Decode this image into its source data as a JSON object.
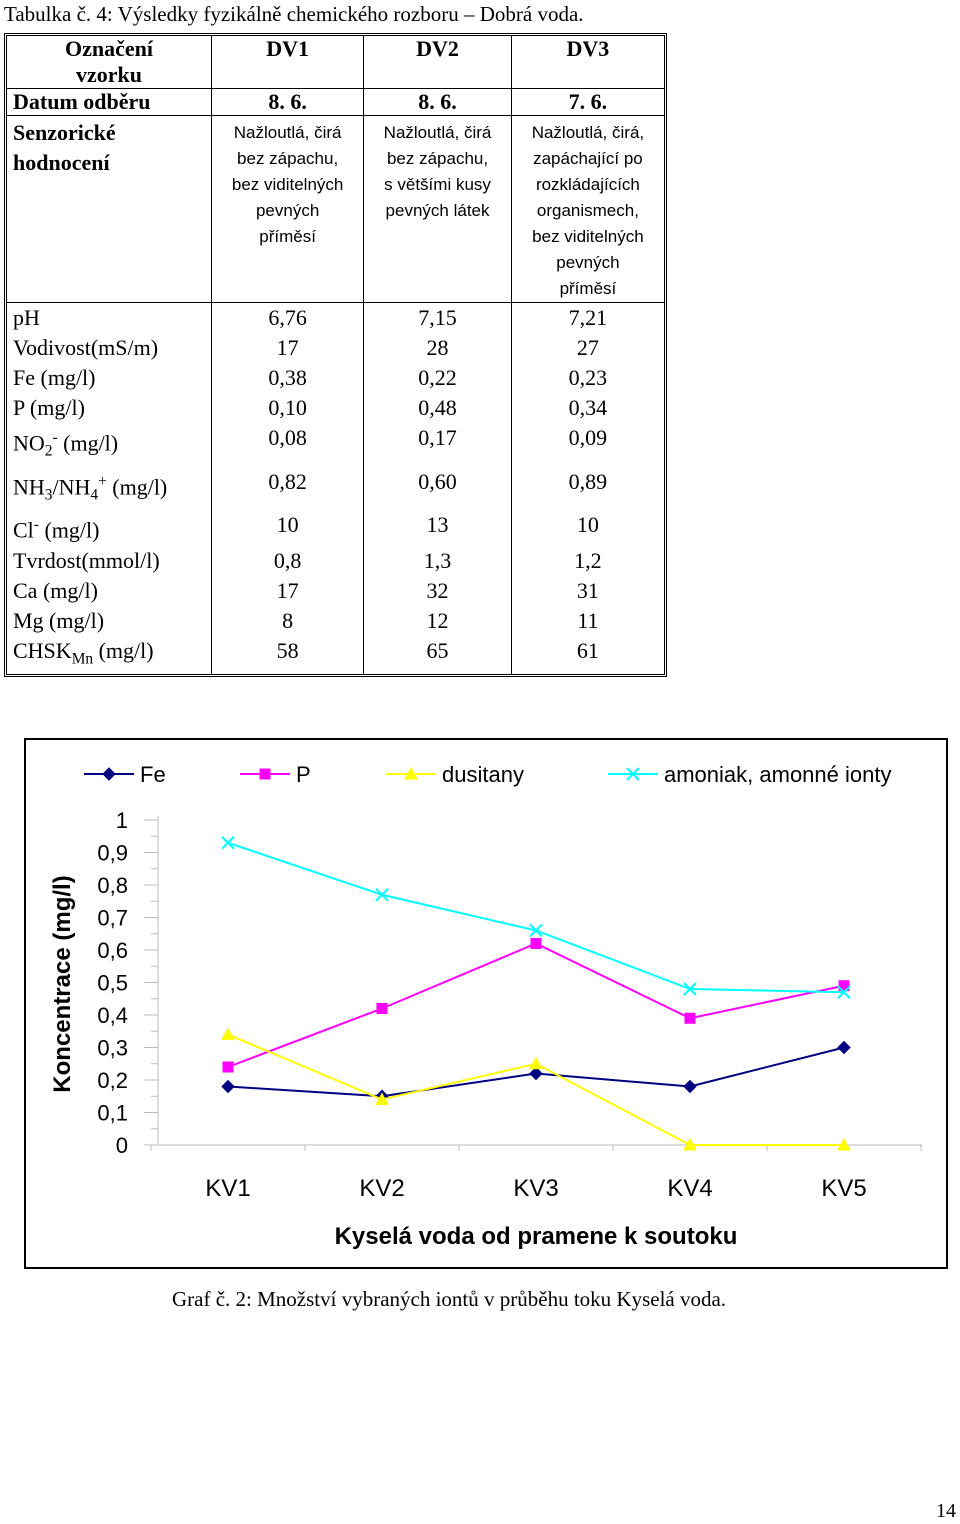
{
  "table_caption": "Tabulka č. 4: Výsledky fyzikálně chemického rozboru – Dobrá voda.",
  "table": {
    "header_label_line1": "Označení",
    "header_label_line2": "vzorku",
    "columns": [
      "DV1",
      "DV2",
      "DV3"
    ],
    "date_label": "Datum odběru",
    "dates": [
      "8. 6.",
      "8. 6.",
      "7. 6."
    ],
    "sensory_label_line1": "Senzorické",
    "sensory_label_line2": "hodnocení",
    "sensory": [
      [
        "Nažloutlá, čirá",
        "bez zápachu,",
        "bez viditelných",
        "pevných",
        "příměsí"
      ],
      [
        "Nažloutlá, čirá",
        "bez zápachu,",
        "s většími kusy",
        "pevných látek"
      ],
      [
        "Nažloutlá, čirá,",
        "zapáchající po",
        "rozkládajících",
        "organismech,",
        "bez viditelných",
        "pevných",
        "příměsí"
      ]
    ],
    "rows": [
      {
        "label": "pH",
        "values": [
          "6,76",
          "7,15",
          "7,21"
        ]
      },
      {
        "label": "Vodivost(mS/m)",
        "values": [
          "17",
          "28",
          "27"
        ]
      },
      {
        "label": "Fe (mg/l)",
        "values": [
          "0,38",
          "0,22",
          "0,23"
        ]
      },
      {
        "label": "P (mg/l)",
        "values": [
          "0,10",
          "0,48",
          "0,34"
        ]
      },
      {
        "label_parts": {
          "a": "NO",
          "sub": "2",
          "sup": "-",
          "b": " (mg/l)"
        },
        "values": [
          "0,08",
          "0,17",
          "0,09"
        ]
      },
      {
        "label_parts": {
          "a": "NH",
          "sub": "3",
          "mid": "/NH",
          "sub2": "4",
          "sup": "+",
          "b": " (mg/l)"
        },
        "values": [
          "0,82",
          "0,60",
          "0,89"
        ]
      },
      {
        "label_parts": {
          "a": "Cl",
          "sup": "-",
          "b": " (mg/l)"
        },
        "values": [
          "10",
          "13",
          "10"
        ]
      },
      {
        "label": "Tvrdost(mmol/l)",
        "values": [
          "0,8",
          "1,3",
          "1,2"
        ]
      },
      {
        "label": "Ca (mg/l)",
        "values": [
          "17",
          "32",
          "31"
        ]
      },
      {
        "label": "Mg (mg/l)",
        "values": [
          "8",
          "12",
          "11"
        ]
      },
      {
        "label_parts": {
          "a": "CHSK",
          "sub": "Mn",
          "b": " (mg/l)"
        },
        "values": [
          "58",
          "65",
          "61"
        ]
      }
    ]
  },
  "chart_data": {
    "type": "line",
    "title": "",
    "xlabel": "Kyselá voda od pramene k soutoku",
    "ylabel": "Koncentrace (mg/l)",
    "categories": [
      "KV1",
      "KV2",
      "KV3",
      "KV4",
      "KV5"
    ],
    "ylim": [
      0,
      1
    ],
    "yticks": [
      "0",
      "0,1",
      "0,2",
      "0,3",
      "0,4",
      "0,5",
      "0,6",
      "0,7",
      "0,8",
      "0,9",
      "1"
    ],
    "legend_position": "top",
    "series": [
      {
        "name": "Fe",
        "color": "#000080",
        "marker": "diamond",
        "values": [
          0.18,
          0.15,
          0.22,
          0.18,
          0.3
        ]
      },
      {
        "name": "P",
        "color": "#ff00ff",
        "marker": "square",
        "values": [
          0.24,
          0.42,
          0.62,
          0.39,
          0.49
        ]
      },
      {
        "name": "dusitany",
        "color": "#ffff00",
        "marker": "triangle",
        "values": [
          0.34,
          0.14,
          0.25,
          0.0,
          0.0
        ]
      },
      {
        "name": "amoniak, amonné ionty",
        "color": "#00ffff",
        "marker": "x",
        "values": [
          0.93,
          0.77,
          0.66,
          0.48,
          0.47
        ]
      }
    ]
  },
  "chart_caption": "Graf č. 2: Množství vybraných iontů v průběhu toku Kyselá voda.",
  "page_number": "14"
}
